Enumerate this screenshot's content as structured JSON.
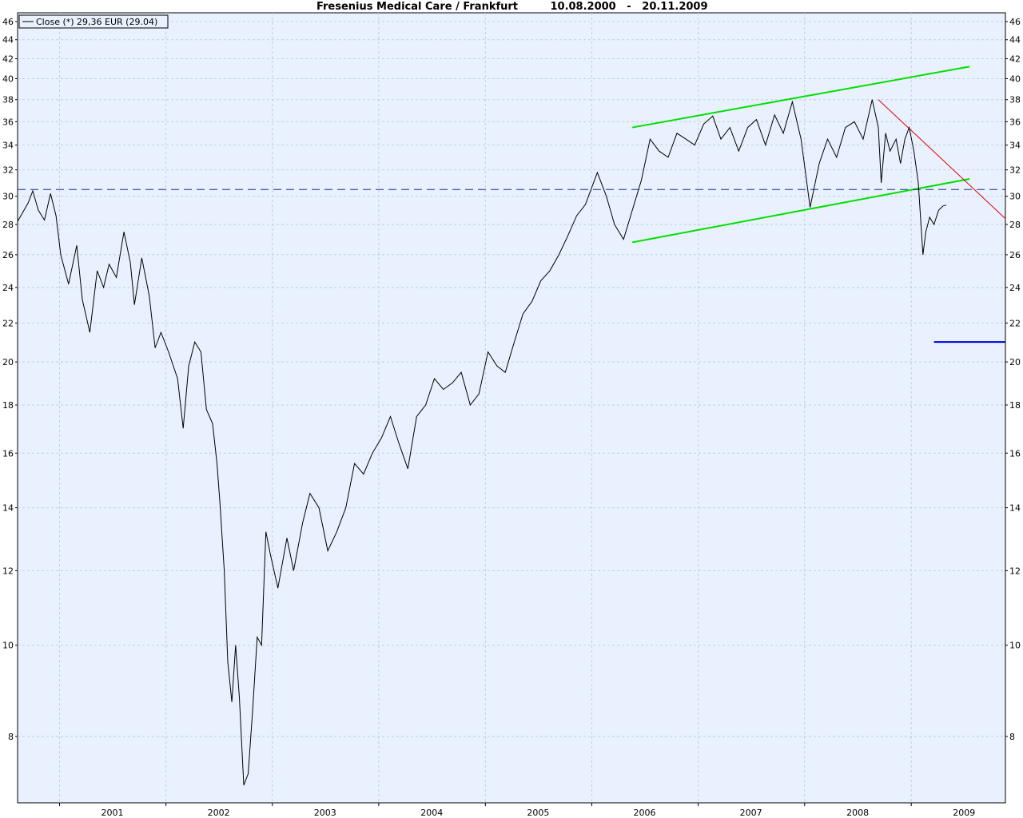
{
  "chart_data": {
    "type": "line",
    "title": "Fresenius Medical Care / Frankfurt",
    "date_range": "10.08.2000   -   20.11.2009",
    "xlabel": "",
    "ylabel": "",
    "y_scale": "log",
    "ylim": [
      6.8,
      47
    ],
    "xlim": [
      "2000-08-10",
      "2009-11-20"
    ],
    "grid": true,
    "background_color": "#e8f1fd",
    "line_color": "#000000",
    "x_ticks": [
      "2001",
      "2002",
      "2003",
      "2004",
      "2005",
      "2006",
      "2007",
      "2008",
      "2009"
    ],
    "y_ticks": [
      8,
      10,
      12,
      14,
      16,
      18,
      20,
      22,
      24,
      26,
      28,
      30,
      32,
      34,
      36,
      38,
      40,
      42,
      44,
      46
    ],
    "legend": {
      "position": "top-left",
      "entries": [
        "Close (*) 29,36 EUR (29.04)"
      ]
    },
    "series": [
      {
        "name": "Close (*) 29,36 EUR (29.04)",
        "x": [
          "2000-08-10",
          "2000-09-15",
          "2000-10-01",
          "2000-10-20",
          "2000-11-10",
          "2000-12-01",
          "2000-12-20",
          "2001-01-05",
          "2001-02-01",
          "2001-03-01",
          "2001-03-20",
          "2001-04-15",
          "2001-05-10",
          "2001-06-01",
          "2001-06-20",
          "2001-07-15",
          "2001-08-10",
          "2001-09-01",
          "2001-09-15",
          "2001-10-10",
          "2001-11-05",
          "2001-11-25",
          "2001-12-15",
          "2002-01-10",
          "2002-02-10",
          "2002-03-01",
          "2002-03-20",
          "2002-04-10",
          "2002-05-01",
          "2002-05-20",
          "2002-06-10",
          "2002-06-25",
          "2002-07-05",
          "2002-07-20",
          "2002-08-01",
          "2002-08-15",
          "2002-08-28",
          "2002-09-10",
          "2002-09-25",
          "2002-10-10",
          "2002-10-25",
          "2002-11-10",
          "2002-11-25",
          "2002-12-10",
          "2002-12-25",
          "2003-01-20",
          "2003-02-20",
          "2003-03-15",
          "2003-04-15",
          "2003-05-10",
          "2003-06-10",
          "2003-07-10",
          "2003-08-10",
          "2003-09-10",
          "2003-10-10",
          "2003-11-10",
          "2003-12-10",
          "2004-01-10",
          "2004-02-10",
          "2004-03-10",
          "2004-04-10",
          "2004-05-10",
          "2004-06-10",
          "2004-07-10",
          "2004-08-10",
          "2004-09-10",
          "2004-10-10",
          "2004-11-10",
          "2004-12-10",
          "2005-01-10",
          "2005-02-10",
          "2005-03-10",
          "2005-04-10",
          "2005-05-10",
          "2005-06-10",
          "2005-07-10",
          "2005-08-10",
          "2005-09-10",
          "2005-10-10",
          "2005-11-10",
          "2005-12-10",
          "2006-01-20",
          "2006-02-20",
          "2006-03-20",
          "2006-04-20",
          "2006-05-20",
          "2006-06-20",
          "2006-07-20",
          "2006-08-20",
          "2006-09-20",
          "2006-10-20",
          "2006-11-20",
          "2006-12-20",
          "2007-01-20",
          "2007-02-20",
          "2007-03-20",
          "2007-04-20",
          "2007-05-20",
          "2007-06-20",
          "2007-07-20",
          "2007-08-20",
          "2007-09-20",
          "2007-10-20",
          "2007-11-20",
          "2007-12-20",
          "2008-01-20",
          "2008-02-20",
          "2008-03-20",
          "2008-04-20",
          "2008-05-20",
          "2008-06-20",
          "2008-07-20",
          "2008-08-20",
          "2008-09-10",
          "2008-09-20",
          "2008-10-05",
          "2008-10-20",
          "2008-11-10",
          "2008-11-25",
          "2008-12-10",
          "2008-12-25",
          "2009-01-10",
          "2009-01-25",
          "2009-02-10",
          "2009-02-20",
          "2009-03-05",
          "2009-03-20",
          "2009-04-05",
          "2009-04-20",
          "2009-05-01"
        ],
        "values": [
          28.2,
          29.5,
          30.4,
          29.0,
          28.3,
          30.2,
          28.6,
          26.0,
          24.2,
          26.6,
          23.3,
          21.5,
          25.0,
          24.0,
          25.4,
          24.6,
          27.5,
          25.5,
          23.0,
          25.8,
          23.5,
          20.7,
          21.5,
          20.5,
          19.2,
          17.0,
          19.8,
          21.0,
          20.5,
          17.8,
          17.2,
          15.6,
          14.2,
          12.0,
          9.6,
          8.7,
          10.0,
          8.8,
          7.1,
          7.3,
          8.5,
          10.2,
          10.0,
          13.2,
          12.5,
          11.5,
          13.0,
          12.0,
          13.5,
          14.5,
          14.0,
          12.6,
          13.2,
          14.0,
          15.6,
          15.2,
          16.0,
          16.6,
          17.5,
          16.4,
          15.4,
          17.5,
          18.0,
          19.2,
          18.7,
          19.0,
          19.5,
          18.0,
          18.5,
          20.5,
          19.8,
          19.5,
          21.0,
          22.5,
          23.2,
          24.4,
          25.0,
          26.0,
          27.2,
          28.6,
          29.4,
          31.8,
          30.0,
          28.0,
          27.0,
          29.0,
          31.2,
          34.5,
          33.5,
          33.0,
          35.0,
          34.5,
          34.0,
          35.8,
          36.5,
          34.5,
          35.5,
          33.5,
          35.5,
          36.2,
          34.0,
          36.6,
          35.0,
          37.8,
          34.5,
          29.2,
          32.5,
          34.5,
          33.0,
          35.5,
          36.0,
          34.5,
          38.0,
          35.5,
          31.0,
          35.0,
          33.5,
          34.5,
          32.5,
          34.5,
          35.5,
          33.5,
          31.0,
          26.0,
          27.5,
          28.5,
          28.0,
          29.0,
          29.3,
          29.36
        ]
      }
    ],
    "overlays": [
      {
        "kind": "line",
        "color": "#00e000",
        "x": [
          "2006-05-20",
          "2009-07-20"
        ],
        "y": [
          35.5,
          41.2
        ]
      },
      {
        "kind": "line",
        "color": "#00e000",
        "x": [
          "2006-05-20",
          "2009-07-20"
        ],
        "y": [
          26.8,
          31.3
        ]
      },
      {
        "kind": "line",
        "color": "#e00000",
        "x": [
          "2008-09-10",
          "2009-11-20"
        ],
        "y": [
          38.0,
          28.4
        ]
      },
      {
        "kind": "line",
        "color": "#1a2a8a",
        "dashed": true,
        "x": [
          "2000-08-10",
          "2009-11-20"
        ],
        "y": [
          30.5,
          30.5
        ]
      },
      {
        "kind": "line",
        "color": "#0000dd",
        "x": [
          "2009-03-20",
          "2009-11-20"
        ],
        "y": [
          21.0,
          21.0
        ]
      }
    ]
  }
}
